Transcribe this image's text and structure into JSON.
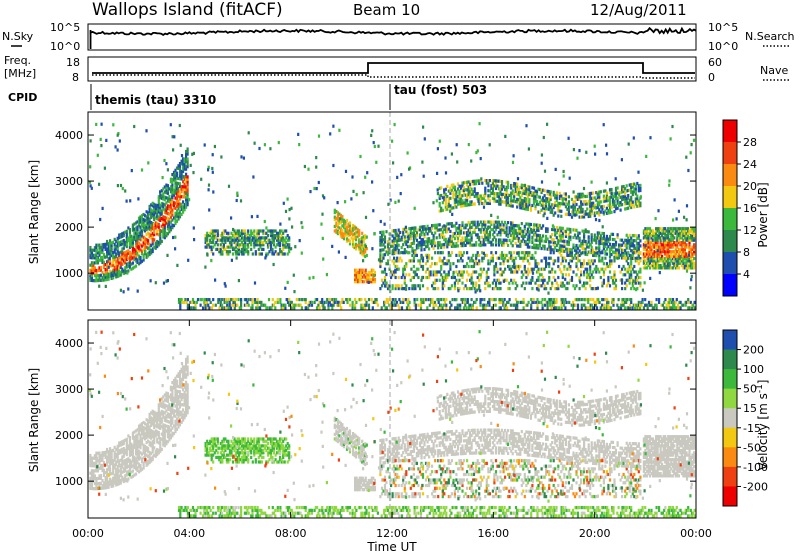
{
  "header": {
    "left_title": "Wallops Island (fitACF)",
    "center_title": "Beam 10",
    "right_title": "12/Aug/2011"
  },
  "nsky_panel": {
    "left_label": "N.Sky",
    "right_label": "N.Search",
    "tick_top": "10^5",
    "tick_bottom": "10^0"
  },
  "freq_panel": {
    "left_label_1": "Freq.",
    "left_label_2": "[MHz]",
    "right_label": "Nave",
    "left_ticks": [
      "18",
      "8"
    ],
    "right_ticks": [
      "60",
      "0"
    ],
    "cpid_label": "CPID",
    "cpid_segments": [
      {
        "name": "themis (tau) 3310",
        "start_hour": 0
      },
      {
        "name": "tau (fost) 503",
        "start_hour": 12
      }
    ]
  },
  "colors": {
    "power_scale": [
      "#0000ff",
      "#1f4fae",
      "#2e8a4c",
      "#3cb93c",
      "#f2c811",
      "#fa8a10",
      "#ee4010",
      "#ee0000"
    ],
    "velocity_scale": [
      "#ee0000",
      "#ee4010",
      "#fa8a10",
      "#f2c811",
      "#c9c9c0",
      "#90d840",
      "#3cb93c",
      "#2e8a4c",
      "#1f4fae"
    ],
    "ground_scatter": "#c9c9c0"
  },
  "chart_data": [
    {
      "type": "heatmap",
      "name": "Power",
      "ylabel": "Slant Range [km]",
      "yticks": [
        "4000",
        "3000",
        "2000",
        "1000"
      ],
      "ylim": [
        200,
        4500
      ],
      "xlim_hours": [
        0,
        24
      ],
      "colorbar": {
        "label": "Power [dB]",
        "ticks": [
          "28",
          "24",
          "20",
          "16",
          "12",
          "8",
          "4"
        ],
        "range": [
          0,
          32
        ]
      },
      "regions": [
        {
          "t0": 0.0,
          "t1": 3.9,
          "r_center_at_t0": 1100,
          "r_center_at_t1": 3000,
          "curve": "parabolic",
          "level_dB": 24
        },
        {
          "t0": 4.6,
          "t1": 7.9,
          "r0": 1450,
          "r1": 2000,
          "level_dB": 10
        },
        {
          "t0": 9.7,
          "t1": 11.0,
          "r0": 1400,
          "r1": 2300,
          "level_dB": 18
        },
        {
          "t0": 10.5,
          "t1": 11.3,
          "r0": 850,
          "r1": 1150,
          "level_dB": 18
        },
        {
          "t0": 12.5,
          "t1": 18.5,
          "r0": 1400,
          "r1": 2100,
          "level_dB": 10
        },
        {
          "t0": 14.0,
          "t1": 21.8,
          "r0": 2300,
          "r1": 2900,
          "level_dB": 10
        },
        {
          "t0": 17.5,
          "t1": 20.5,
          "r0": 900,
          "r1": 1500,
          "level_dB": 12
        },
        {
          "t0": 21.9,
          "t1": 24.0,
          "r0": 1200,
          "r1": 2000,
          "level_dB": 22
        }
      ]
    },
    {
      "type": "heatmap",
      "name": "Velocity",
      "ylabel": "Slant Range [km]",
      "yticks": [
        "4000",
        "3000",
        "2000",
        "1000"
      ],
      "ylim": [
        200,
        4500
      ],
      "xlim_hours": [
        0,
        24
      ],
      "xticks": [
        "00:00",
        "04:00",
        "08:00",
        "12:00",
        "16:00",
        "20:00",
        "00:00"
      ],
      "xlabel": "Time UT",
      "colorbar": {
        "label": "Velocity [m s^-1]",
        "ticks": [
          "200",
          "100",
          "50",
          "15",
          "-15",
          "-50",
          "-100",
          "-200"
        ],
        "range": [
          -250,
          250
        ]
      },
      "regions": [
        {
          "t0": 0.0,
          "t1": 3.9,
          "kind": "ground-scatter"
        },
        {
          "t0": 4.6,
          "t1": 7.9,
          "r0": 1450,
          "r1": 2000,
          "velocity": 30
        },
        {
          "t0": 12.0,
          "t1": 24.0,
          "kind": "ground-scatter"
        }
      ]
    }
  ]
}
